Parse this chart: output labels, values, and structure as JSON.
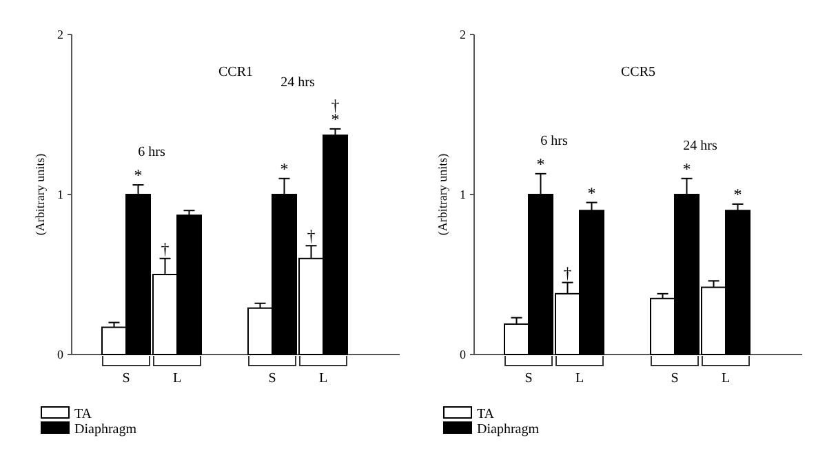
{
  "chart_data": [
    {
      "type": "bar",
      "title": "CCR1",
      "ylabel": "(Arbitrary units)",
      "categories": [
        "S",
        "L",
        "S",
        "L"
      ],
      "ylim": [
        0,
        2
      ],
      "yticks": [
        0,
        1,
        2
      ],
      "legend": "bottom left",
      "annotations": [
        "6 hrs",
        "24 hrs"
      ],
      "series": [
        {
          "name": "TA",
          "color": "#ffffff",
          "values": [
            0.17,
            0.5,
            0.29,
            0.6
          ],
          "errors": [
            [
              0.17,
              0.2
            ],
            [
              0.5,
              0.6
            ],
            [
              0.29,
              0.32
            ],
            [
              0.6,
              0.68
            ]
          ],
          "value_labels": [
            null,
            "†",
            null,
            "†"
          ]
        },
        {
          "name": "Diaphragm",
          "color": "#000000",
          "values": [
            1.0,
            0.87,
            1.0,
            1.37
          ],
          "errors": [
            [
              1.0,
              1.06
            ],
            [
              0.87,
              0.9
            ],
            [
              1.0,
              1.1
            ],
            [
              1.37,
              1.41
            ]
          ],
          "value_labels": [
            "*",
            null,
            "*",
            "† *"
          ]
        }
      ]
    },
    {
      "type": "bar",
      "title": "CCR5",
      "ylabel": "(Arbitrary units)",
      "categories": [
        "S",
        "L",
        "S",
        "L"
      ],
      "ylim": [
        0,
        2
      ],
      "yticks": [
        0,
        1,
        2
      ],
      "legend": "bottom left",
      "annotations": [
        "6 hrs",
        "24 hrs"
      ],
      "series": [
        {
          "name": "TA",
          "color": "#ffffff",
          "values": [
            0.19,
            0.38,
            0.35,
            0.42
          ],
          "errors": [
            [
              0.19,
              0.23
            ],
            [
              0.38,
              0.45
            ],
            [
              0.35,
              0.38
            ],
            [
              0.42,
              0.46
            ]
          ],
          "value_labels": [
            null,
            "†",
            null,
            null
          ]
        },
        {
          "name": "Diaphragm",
          "color": "#000000",
          "values": [
            1.0,
            0.9,
            1.0,
            0.9
          ],
          "errors": [
            [
              1.0,
              1.13
            ],
            [
              0.9,
              0.95
            ],
            [
              1.0,
              1.1
            ],
            [
              0.9,
              0.94
            ]
          ],
          "value_labels": [
            "*",
            "*",
            "*",
            "*"
          ]
        }
      ]
    }
  ]
}
